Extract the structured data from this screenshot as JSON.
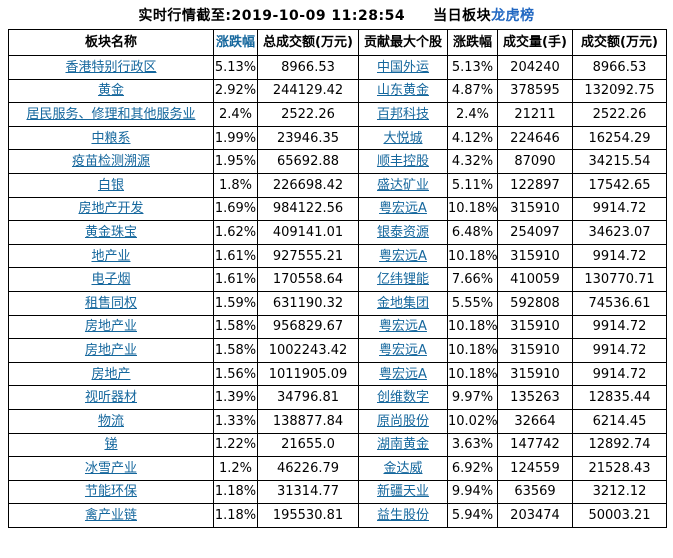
{
  "title": {
    "datetime_line": "实时行情截至:2019-10-09 11:28:54",
    "board_label": "当日板块",
    "link_label": "龙虎榜"
  },
  "table": {
    "headers": [
      "板块名称",
      "涨跌幅",
      "总成交额(万元)",
      "贡献最大个股",
      "涨跌幅",
      "成交量(手)",
      "成交额(万元)"
    ],
    "rows": [
      [
        "香港特别行政区",
        "5.13%",
        "8966.53",
        "中国外运",
        "5.13%",
        "204240",
        "8966.53"
      ],
      [
        "黄金",
        "2.92%",
        "244129.42",
        "山东黄金",
        "4.87%",
        "378595",
        "132092.75"
      ],
      [
        "居民服务、修理和其他服务业",
        "2.4%",
        "2522.26",
        "百邦科技",
        "2.4%",
        "21211",
        "2522.26"
      ],
      [
        "中粮系",
        "1.99%",
        "23946.35",
        "大悦城",
        "4.12%",
        "224646",
        "16254.29"
      ],
      [
        "疫苗检测溯源",
        "1.95%",
        "65692.88",
        "顺丰控股",
        "4.32%",
        "87090",
        "34215.54"
      ],
      [
        "白银",
        "1.8%",
        "226698.42",
        "盛达矿业",
        "5.11%",
        "122897",
        "17542.65"
      ],
      [
        "房地产开发",
        "1.69%",
        "984122.56",
        "粤宏远A",
        "10.18%",
        "315910",
        "9914.72"
      ],
      [
        "黄金珠宝",
        "1.62%",
        "409141.01",
        "银泰资源",
        "6.48%",
        "254097",
        "34623.07"
      ],
      [
        "地产业",
        "1.61%",
        "927555.21",
        "粤宏远A",
        "10.18%",
        "315910",
        "9914.72"
      ],
      [
        "电子烟",
        "1.61%",
        "170558.64",
        "亿纬锂能",
        "7.66%",
        "410059",
        "130770.71"
      ],
      [
        "租售同权",
        "1.59%",
        "631190.32",
        "金地集团",
        "5.55%",
        "592808",
        "74536.61"
      ],
      [
        "房地产业",
        "1.58%",
        "956829.67",
        "粤宏远A",
        "10.18%",
        "315910",
        "9914.72"
      ],
      [
        "房地产业",
        "1.58%",
        "1002243.42",
        "粤宏远A",
        "10.18%",
        "315910",
        "9914.72"
      ],
      [
        "房地产",
        "1.56%",
        "1011905.09",
        "粤宏远A",
        "10.18%",
        "315910",
        "9914.72"
      ],
      [
        "视听器材",
        "1.39%",
        "34796.81",
        "创维数字",
        "9.97%",
        "135263",
        "12835.44"
      ],
      [
        "物流",
        "1.33%",
        "138877.84",
        "原尚股份",
        "10.02%",
        "32664",
        "6214.45"
      ],
      [
        "锑",
        "1.22%",
        "21655.0",
        "湖南黄金",
        "3.63%",
        "147742",
        "12892.74"
      ],
      [
        "冰雪产业",
        "1.2%",
        "46226.79",
        "金达威",
        "6.92%",
        "124559",
        "21528.43"
      ],
      [
        "节能环保",
        "1.18%",
        "31314.77",
        "新疆天业",
        "9.94%",
        "63569",
        "3212.12"
      ],
      [
        "禽产业链",
        "1.18%",
        "195530.81",
        "益生股份",
        "5.94%",
        "203474",
        "50003.21"
      ]
    ]
  },
  "colors": {
    "cell_link_blue": "#15679d",
    "title_link_blue": "#2268c2",
    "border_black": "#000000",
    "background": "#ffffff"
  }
}
